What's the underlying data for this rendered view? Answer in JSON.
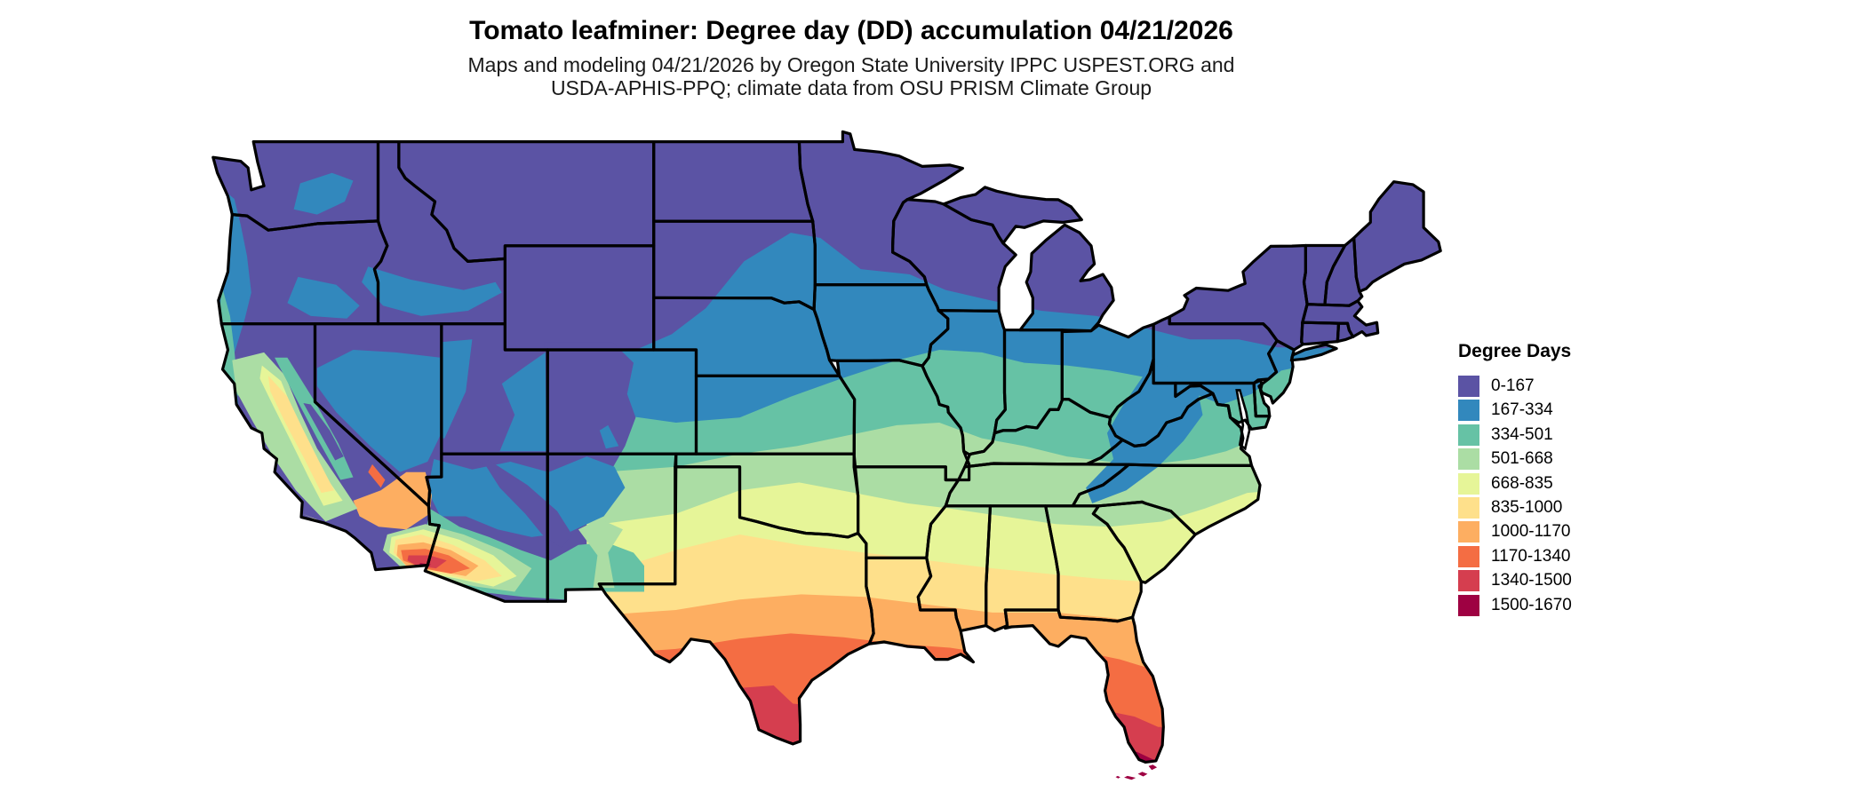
{
  "header": {
    "title": "Tomato leafminer: Degree day (DD) accumulation 04/21/2026",
    "subtitle_line1": "Maps and modeling 04/21/2026 by Oregon State University IPPC USPEST.ORG and",
    "subtitle_line2": "USDA-APHIS-PPQ; climate data from OSU PRISM Climate Group"
  },
  "legend": {
    "title": "Degree Days",
    "items": [
      {
        "range": "0-167",
        "color": "#5b53a4"
      },
      {
        "range": "167-334",
        "color": "#3288bd"
      },
      {
        "range": "334-501",
        "color": "#66c2a5"
      },
      {
        "range": "501-668",
        "color": "#abdda4"
      },
      {
        "range": "668-835",
        "color": "#e6f598"
      },
      {
        "range": "835-1000",
        "color": "#fee08b"
      },
      {
        "range": "1000-1170",
        "color": "#fdae61"
      },
      {
        "range": "1170-1340",
        "color": "#f46d43"
      },
      {
        "range": "1340-1500",
        "color": "#d53e4f"
      },
      {
        "range": "1500-1670",
        "color": "#9e0142"
      }
    ]
  },
  "map": {
    "region": "Contiguous United States",
    "border_color": "#000000",
    "water_color": "#ffffff"
  }
}
